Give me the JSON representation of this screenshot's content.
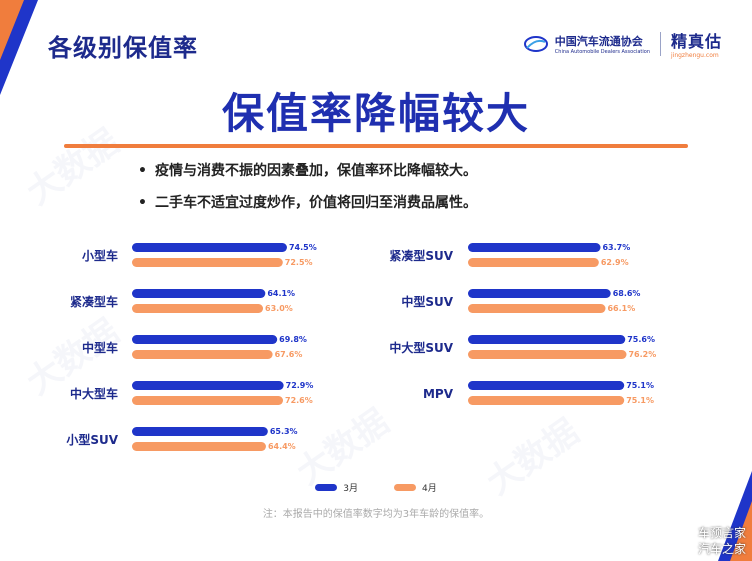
{
  "header": {
    "title": "各级别保值率"
  },
  "logos": {
    "cada_cn": "中国汽车流通协会",
    "cada_en": "China Automobile Dealers Association",
    "jzg_cn": "精真估",
    "jzg_url": "jingzhengu.com"
  },
  "main_title": "保值率降幅较大",
  "bullets": [
    {
      "dot": "•",
      "text": "疫情与消费不振的因素叠加，保值率环比降幅较大。"
    },
    {
      "dot": "•",
      "text": "二手车不适宜过度炒作，价值将回归至消费品属性。"
    }
  ],
  "colors": {
    "march": "#1f35c9",
    "april": "#f79a63",
    "accent": "#f07d3d",
    "brand": "#1d2a8c"
  },
  "chart_data": [
    {
      "type": "bar",
      "orientation": "horizontal",
      "categories": [
        "小型车",
        "紧凑型车",
        "中型车",
        "中大型车",
        "小型SUV"
      ],
      "series": [
        {
          "name": "3月",
          "values": [
            74.5,
            64.1,
            69.8,
            72.9,
            65.3
          ],
          "labels": [
            "74.5%",
            "64.1%",
            "69.8%",
            "72.9%",
            "65.3%"
          ]
        },
        {
          "name": "4月",
          "values": [
            72.5,
            63.0,
            67.6,
            72.6,
            64.4
          ],
          "labels": [
            "72.5%",
            "63.0%",
            "67.6%",
            "72.6%",
            "64.4%"
          ]
        }
      ],
      "unit": "%"
    },
    {
      "type": "bar",
      "orientation": "horizontal",
      "categories": [
        "紧凑型SUV",
        "中型SUV",
        "中大型SUV",
        "MPV"
      ],
      "series": [
        {
          "name": "3月",
          "values": [
            63.7,
            68.6,
            75.6,
            75.1
          ],
          "labels": [
            "63.7%",
            "68.6%",
            "75.6%",
            "75.1%"
          ]
        },
        {
          "name": "4月",
          "values": [
            62.9,
            66.1,
            76.2,
            75.1
          ],
          "labels": [
            "62.9%",
            "66.1%",
            "76.2%",
            "75.1%"
          ]
        }
      ],
      "unit": "%"
    }
  ],
  "legend": [
    {
      "label": "3月",
      "color": "#1f35c9"
    },
    {
      "label": "4月",
      "color": "#f79a63"
    }
  ],
  "footnote": "注：本报告中的保值率数字均为3年车龄的保值率。",
  "watermark": "大数据",
  "corner_mark": [
    "车预言家",
    "汽车之家"
  ]
}
